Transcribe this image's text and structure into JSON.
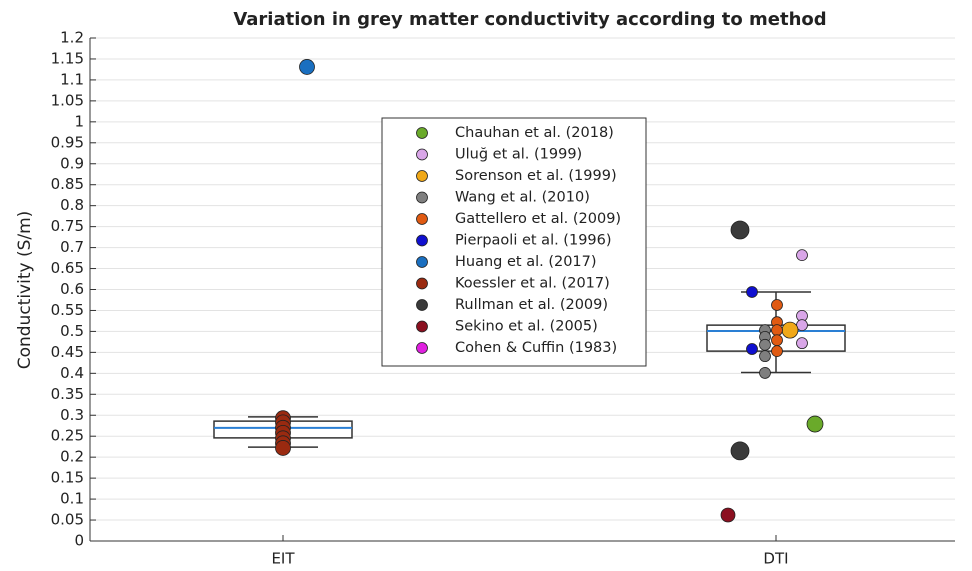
{
  "chart_data": {
    "type": "box",
    "title": "Variation in grey matter conductivity according to method",
    "y_label": "Conductivity (S/m)",
    "categories": [
      "EIT",
      "DTI"
    ],
    "ylim": [
      0,
      1.2
    ],
    "yticks": [
      0,
      0.05,
      0.1,
      0.15,
      0.2,
      0.25,
      0.3,
      0.35,
      0.4,
      0.45,
      0.5,
      0.55,
      0.6,
      0.65,
      0.7,
      0.75,
      0.8,
      0.85,
      0.9,
      0.95,
      1,
      1.05,
      1.1,
      1.15,
      1.2
    ],
    "grid": true,
    "box_color": "#333333",
    "median_color": "#2a7fd4",
    "boxes": [
      {
        "whislo": 0.224,
        "q1": 0.246,
        "med": 0.27,
        "q3": 0.286,
        "whishi": 0.296
      },
      {
        "whislo": 0.402,
        "q1": 0.453,
        "med": 0.501,
        "q3": 0.515,
        "whishi": 0.594
      }
    ],
    "series": [
      {
        "name": "Chauhan et al. (2018)",
        "color": "#6aaa2a",
        "x": [
          "DTI"
        ],
        "values": [
          0.279
        ]
      },
      {
        "name": "Uluğ et al. (1999)",
        "color": "#d9a6e8",
        "x": [
          "DTI",
          "DTI",
          "DTI",
          "DTI"
        ],
        "values": [
          0.682,
          0.537,
          0.515,
          0.472
        ]
      },
      {
        "name": "Sorenson et al. (1999)",
        "color": "#f0a818",
        "x": [
          "DTI"
        ],
        "values": [
          0.503
        ]
      },
      {
        "name": "Wang et al. (2010)",
        "color": "#7f7f7f",
        "x": [
          "DTI",
          "DTI",
          "DTI",
          "DTI",
          "DTI"
        ],
        "values": [
          0.503,
          0.487,
          0.468,
          0.441,
          0.401
        ]
      },
      {
        "name": "Gattellero et al. (2009)",
        "color": "#e05a12",
        "x": [
          "DTI",
          "DTI",
          "DTI",
          "DTI",
          "DTI"
        ],
        "values": [
          0.563,
          0.522,
          0.503,
          0.479,
          0.453
        ]
      },
      {
        "name": "Pierpaoli et al. (1996)",
        "color": "#1010d0",
        "x": [
          "DTI",
          "DTI"
        ],
        "values": [
          0.594,
          0.458
        ]
      },
      {
        "name": "Huang et al. (2017)",
        "color": "#1a6fc0",
        "x": [
          "EIT"
        ],
        "values": [
          1.131
        ]
      },
      {
        "name": "Koessler et al. (2017)",
        "color": "#9a2a10",
        "x": [
          "EIT",
          "EIT",
          "EIT",
          "EIT",
          "EIT",
          "EIT",
          "EIT"
        ],
        "values": [
          0.293,
          0.283,
          0.27,
          0.258,
          0.245,
          0.233,
          0.222
        ]
      },
      {
        "name": "Rullman et al. (2009)",
        "color": "#3a3a3a",
        "x": [
          "DTI",
          "DTI"
        ],
        "values": [
          0.742,
          0.215
        ]
      },
      {
        "name": "Sekino et al. (2005)",
        "color": "#8b1020",
        "x": [
          "DTI"
        ],
        "values": [
          0.062
        ]
      },
      {
        "name": "Cohen & Cuffin (1983)",
        "color": "#e020e0",
        "x": [],
        "values": []
      }
    ]
  }
}
